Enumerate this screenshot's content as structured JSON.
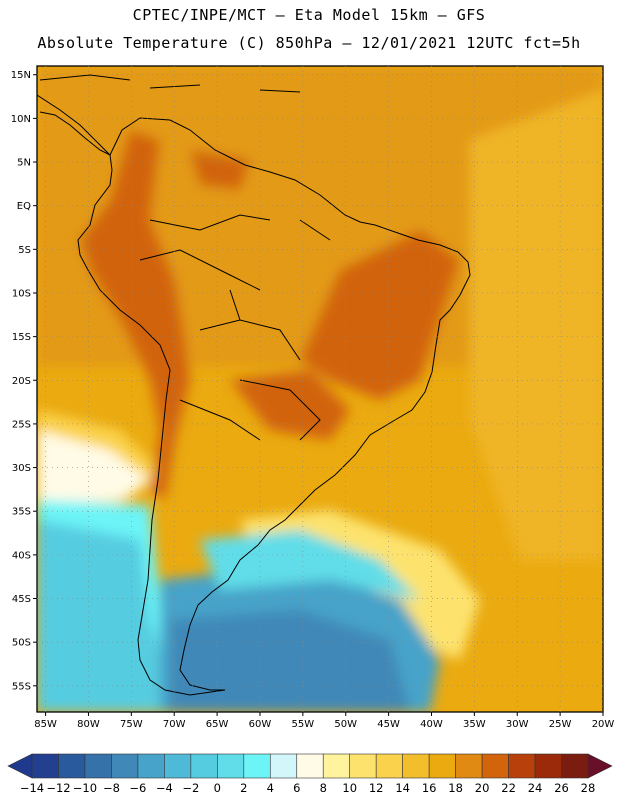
{
  "header": {
    "title_line1": "CPTEC/INPE/MCT –  Eta Model 15km – GFS",
    "title_line2": "Absolute Temperature (C) 850hPa – 12/01/2021 12UTC fct=5h"
  },
  "map": {
    "lat_labels": [
      "15N",
      "10N",
      "5N",
      "EQ",
      "5S",
      "10S",
      "15S",
      "20S",
      "25S",
      "30S",
      "35S",
      "40S",
      "45S",
      "50S",
      "55S"
    ],
    "lon_labels": [
      "85W",
      "80W",
      "75W",
      "70W",
      "65W",
      "60W",
      "55W",
      "50W",
      "45W",
      "40W",
      "35W",
      "30W",
      "25W",
      "20W"
    ],
    "lat_range": [
      -58,
      16
    ],
    "lon_range": [
      -86,
      -20
    ]
  },
  "colorbar": {
    "labels": [
      "-14",
      "-12",
      "-10",
      "-8",
      "-6",
      "-4",
      "-2",
      "0",
      "2",
      "4",
      "6",
      "8",
      "10",
      "12",
      "14",
      "16",
      "18",
      "20",
      "22",
      "24",
      "26",
      "28"
    ],
    "colors": {
      "under": "#1f3a8c",
      "bins": [
        "#22408f",
        "#2a5a9e",
        "#3572aa",
        "#3f88b8",
        "#47a3c9",
        "#4fbad7",
        "#56cce0",
        "#60dde8",
        "#6cf4f7",
        "#d3f6fb",
        "#fffbe6",
        "#fff39e",
        "#fde36e",
        "#fbd24b",
        "#f3be2c",
        "#eaaa10",
        "#e08a14",
        "#d2640c",
        "#b8400a",
        "#9a2a0a",
        "#7a1c10"
      ],
      "over": "#6a0f2a"
    }
  },
  "colors": {
    "ocean_warm": "#f3be2c",
    "land_hot": "#d2640c",
    "cold_south": "#3f88b8"
  }
}
